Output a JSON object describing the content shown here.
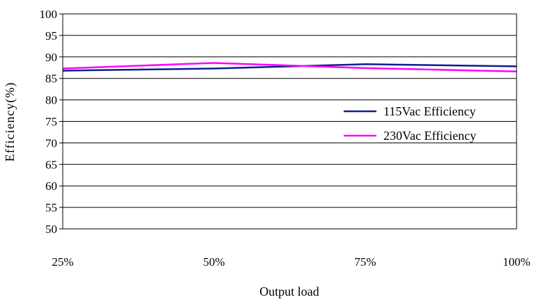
{
  "chart_data": {
    "type": "line",
    "x": [
      "25%",
      "50%",
      "75%",
      "100%"
    ],
    "xlabel": "Output load",
    "ylabel": "Efficiency(%)",
    "ylim": [
      50,
      100
    ],
    "yticks": [
      "50",
      "55",
      "60",
      "65",
      "70",
      "75",
      "80",
      "85",
      "90",
      "95",
      "100"
    ],
    "grid": "horizontal",
    "legend_position": "center-right",
    "series": [
      {
        "name": "115Vac Efficiency",
        "color": "#0b1f8c",
        "values": [
          86.8,
          87.3,
          88.3,
          87.8
        ]
      },
      {
        "name": "230Vac Efficiency",
        "color": "#ff00ff",
        "values": [
          87.3,
          88.6,
          87.4,
          86.6
        ]
      }
    ]
  }
}
